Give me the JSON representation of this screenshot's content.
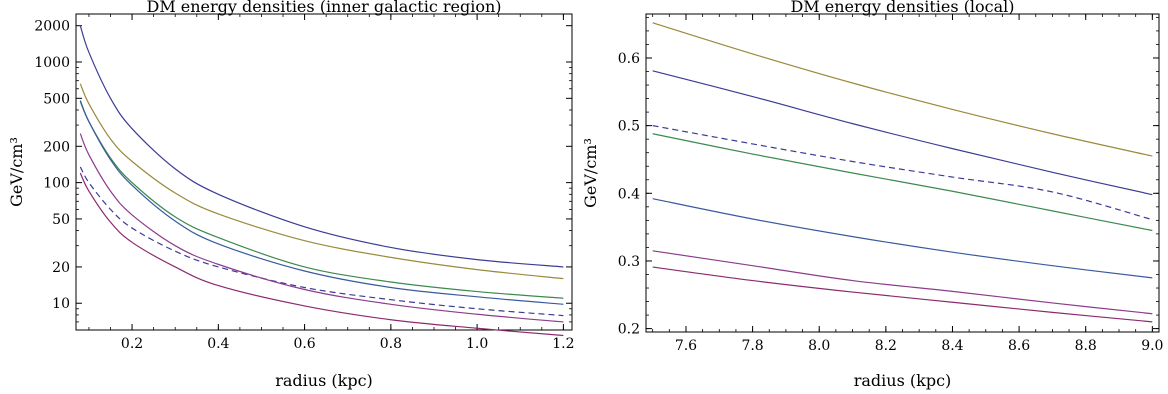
{
  "chart_data": [
    {
      "type": "line",
      "title": "DM energy densities (inner galactic region)",
      "xlabel": "radius (kpc)",
      "ylabel": "GeV/cm³",
      "xlim": [
        0.07,
        1.22
      ],
      "ylim": [
        6,
        2500
      ],
      "yscale": "log",
      "xticks": [
        "0.2",
        "0.4",
        "0.6",
        "0.8",
        "1.0",
        "1.2"
      ],
      "yticks": [
        "10",
        "20",
        "50",
        "100",
        "200",
        "500",
        "1000",
        "2000"
      ],
      "x": [
        0.08,
        0.1,
        0.15,
        0.2,
        0.3,
        0.4,
        0.6,
        0.8,
        1.0,
        1.2
      ],
      "series": [
        {
          "color": "#3c3c96",
          "dashed": false,
          "values": [
            2000,
            1200,
            500,
            280,
            130,
            80,
            43,
            29,
            23,
            20
          ]
        },
        {
          "color": "#9b8a3c",
          "dashed": false,
          "values": [
            660,
            450,
            230,
            150,
            82,
            55,
            33,
            24,
            19,
            16
          ]
        },
        {
          "color": "#3c8a50",
          "dashed": false,
          "values": [
            470,
            320,
            160,
            100,
            52,
            35,
            20,
            15,
            12.5,
            11
          ]
        },
        {
          "color": "#3a5aa0",
          "dashed": false,
          "values": [
            480,
            320,
            155,
            95,
            48,
            31,
            18.5,
            13.5,
            11.3,
            9.8
          ]
        },
        {
          "color": "#3c3c96",
          "dashed": true,
          "values": [
            135,
            100,
            60,
            42,
            27,
            20,
            13.5,
            10.7,
            9,
            7.9
          ]
        },
        {
          "color": "#8c3c8c",
          "dashed": false,
          "values": [
            255,
            170,
            85,
            54,
            30,
            21,
            13,
            9.8,
            8.1,
            7
          ]
        },
        {
          "color": "#8c2a6e",
          "dashed": false,
          "values": [
            120,
            85,
            47,
            32,
            20,
            14,
            9.5,
            7.3,
            6.2,
            5.4
          ]
        }
      ]
    },
    {
      "type": "line",
      "title": "DM energy densities (local)",
      "xlabel": "radius (kpc)",
      "ylabel": "GeV/cm³",
      "xlim": [
        7.48,
        9.02
      ],
      "ylim": [
        0.195,
        0.665
      ],
      "xticks": [
        "7.6",
        "7.8",
        "8.0",
        "8.2",
        "8.4",
        "8.6",
        "8.8",
        "9.0"
      ],
      "yticks": [
        "0.2",
        "0.3",
        "0.4",
        "0.5",
        "0.6"
      ],
      "x": [
        7.5,
        7.8,
        8.1,
        8.4,
        8.7,
        9.0
      ],
      "series": [
        {
          "color": "#9b8a3c",
          "dashed": false,
          "values": [
            0.652,
            0.606,
            0.563,
            0.524,
            0.488,
            0.455
          ]
        },
        {
          "color": "#3c3c96",
          "dashed": false,
          "values": [
            0.581,
            0.543,
            0.503,
            0.466,
            0.431,
            0.398
          ]
        },
        {
          "color": "#3c3c96",
          "dashed": true,
          "values": [
            0.5,
            0.473,
            0.447,
            0.424,
            0.402,
            0.361
          ]
        },
        {
          "color": "#3c8a50",
          "dashed": false,
          "values": [
            0.488,
            0.458,
            0.43,
            0.403,
            0.374,
            0.345
          ]
        },
        {
          "color": "#3a5aa0",
          "dashed": false,
          "values": [
            0.392,
            0.362,
            0.336,
            0.313,
            0.293,
            0.275
          ]
        },
        {
          "color": "#8c3c8c",
          "dashed": false,
          "values": [
            0.315,
            0.293,
            0.271,
            0.255,
            0.238,
            0.222
          ]
        },
        {
          "color": "#8c2a6e",
          "dashed": false,
          "values": [
            0.291,
            0.271,
            0.254,
            0.239,
            0.224,
            0.21
          ]
        }
      ]
    }
  ]
}
